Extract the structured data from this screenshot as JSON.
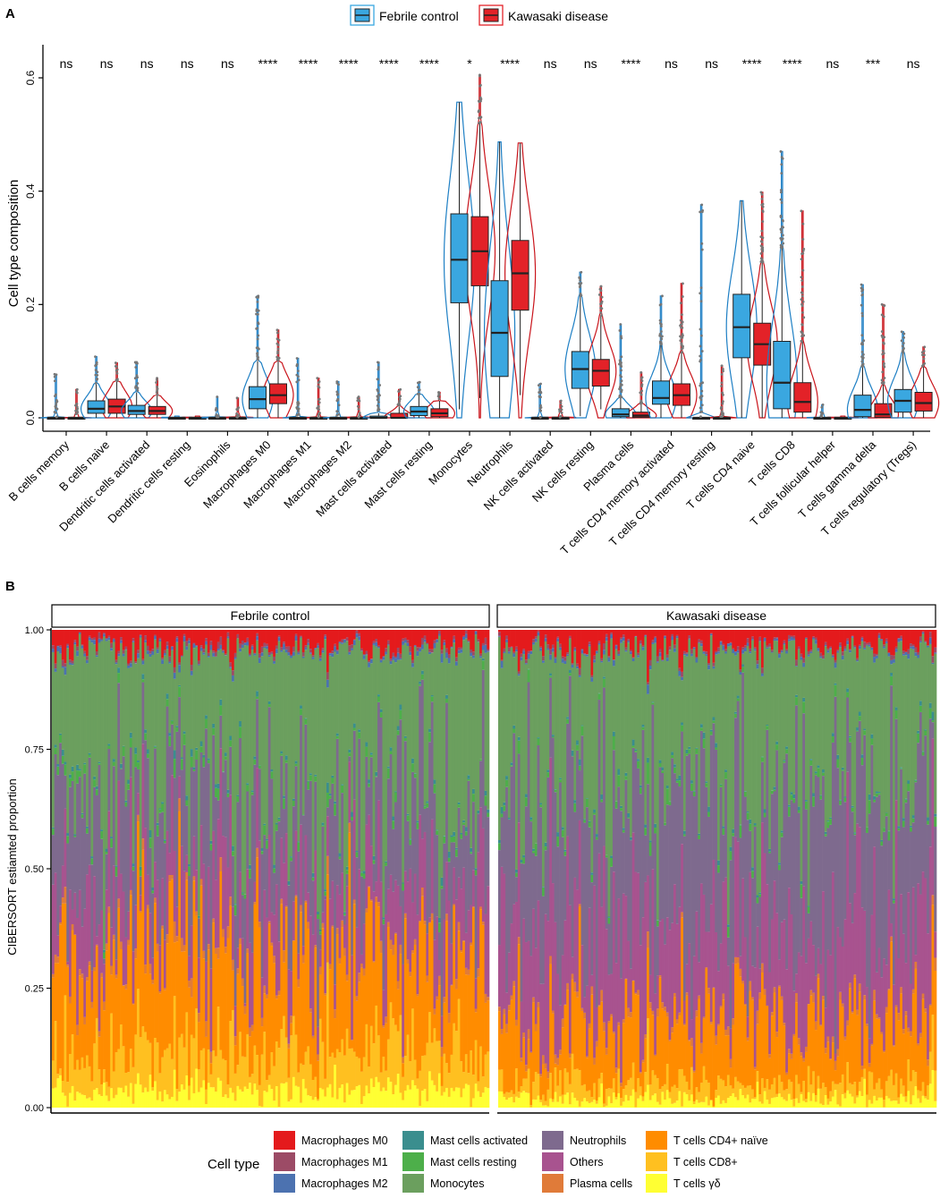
{
  "panel_a_label": "A",
  "panel_b_label": "B",
  "colors": {
    "febrile": "#3AA7E0",
    "febrile_line": "#1E7FC4",
    "kawasaki": "#E32228",
    "kawasaki_line": "#C9141B"
  },
  "chart_data": [
    {
      "type": "boxplot",
      "panel": "A",
      "ylabel": "Cell type composition",
      "ylim": [
        0,
        0.62
      ],
      "yticks": [
        "0.0",
        "0.2",
        "0.4",
        "0.6"
      ],
      "ytick_values": [
        0,
        0.2,
        0.4,
        0.6
      ],
      "legend": [
        {
          "name": "Febrile control",
          "color": "#3AA7E0"
        },
        {
          "name": "Kawasaki disease",
          "color": "#E32228"
        }
      ],
      "categories": [
        "B cells memory",
        "B cells naive",
        "Dendritic cells activated",
        "Dendritic cells resting",
        "Eosinophils",
        "Macrophages M0",
        "Macrophages M1",
        "Macrophages M2",
        "Mast cells activated",
        "Mast cells resting",
        "Monocytes",
        "Neutrophils",
        "NK cells activated",
        "NK cells resting",
        "Plasma cells",
        "T cells CD4 memory activated",
        "T cells CD4 memory resting",
        "T cells CD4 naive",
        "T cells CD8",
        "T cells follicular helper",
        "T cells gamma delta",
        "T cells regulatory (Tregs)"
      ],
      "significance": [
        "ns",
        "ns",
        "ns",
        "ns",
        "ns",
        "****",
        "****",
        "****",
        "****",
        "****",
        "*",
        "****",
        "ns",
        "ns",
        "****",
        "ns",
        "ns",
        "****",
        "****",
        "ns",
        "***",
        "ns"
      ],
      "series": [
        {
          "name": "Febrile control",
          "boxes": [
            {
              "q1": 0,
              "med": 0,
              "q3": 0,
              "wlo": 0,
              "whi": 0.001,
              "max": 0.077
            },
            {
              "q1": 0.008,
              "med": 0.016,
              "q3": 0.03,
              "wlo": 0,
              "whi": 0.06,
              "max": 0.108
            },
            {
              "q1": 0.006,
              "med": 0.012,
              "q3": 0.022,
              "wlo": 0,
              "whi": 0.045,
              "max": 0.098
            },
            {
              "q1": 0,
              "med": 0,
              "q3": 0,
              "wlo": 0,
              "whi": 0.001,
              "max": 0.003
            },
            {
              "q1": 0,
              "med": 0,
              "q3": 0,
              "wlo": 0,
              "whi": 0.001,
              "max": 0.037
            },
            {
              "q1": 0.016,
              "med": 0.033,
              "q3": 0.055,
              "wlo": 0,
              "whi": 0.1,
              "max": 0.215
            },
            {
              "q1": 0,
              "med": 0,
              "q3": 0,
              "wlo": 0,
              "whi": 0.001,
              "max": 0.105
            },
            {
              "q1": 0,
              "med": 0,
              "q3": 0,
              "wlo": 0,
              "whi": 0.001,
              "max": 0.064
            },
            {
              "q1": 0,
              "med": 0,
              "q3": 0.003,
              "wlo": 0,
              "whi": 0.008,
              "max": 0.098
            },
            {
              "q1": 0.004,
              "med": 0.011,
              "q3": 0.02,
              "wlo": 0,
              "whi": 0.042,
              "max": 0.063
            },
            {
              "q1": 0.203,
              "med": 0.279,
              "q3": 0.36,
              "wlo": 0.015,
              "whi": 0.557,
              "max": 0.557
            },
            {
              "q1": 0.073,
              "med": 0.15,
              "q3": 0.242,
              "wlo": 0,
              "whi": 0.487,
              "max": 0.487
            },
            {
              "q1": 0,
              "med": 0,
              "q3": 0,
              "wlo": 0,
              "whi": 0.001,
              "max": 0.06
            },
            {
              "q1": 0.052,
              "med": 0.086,
              "q3": 0.117,
              "wlo": 0.003,
              "whi": 0.215,
              "max": 0.257
            },
            {
              "q1": 0.002,
              "med": 0.006,
              "q3": 0.016,
              "wlo": 0,
              "whi": 0.035,
              "max": 0.165
            },
            {
              "q1": 0.024,
              "med": 0.035,
              "q3": 0.065,
              "wlo": 0,
              "whi": 0.13,
              "max": 0.215
            },
            {
              "q1": 0,
              "med": 0,
              "q3": 0,
              "wlo": 0,
              "whi": 0.002,
              "max": 0.376
            },
            {
              "q1": 0.106,
              "med": 0.16,
              "q3": 0.218,
              "wlo": 0,
              "whi": 0.383,
              "max": 0.383
            },
            {
              "q1": 0.016,
              "med": 0.062,
              "q3": 0.135,
              "wlo": 0,
              "whi": 0.3,
              "max": 0.47
            },
            {
              "q1": 0,
              "med": 0,
              "q3": 0,
              "wlo": 0,
              "whi": 0.001,
              "max": 0.023
            },
            {
              "q1": 0.002,
              "med": 0.014,
              "q3": 0.04,
              "wlo": 0,
              "whi": 0.09,
              "max": 0.235
            },
            {
              "q1": 0.01,
              "med": 0.03,
              "q3": 0.05,
              "wlo": 0,
              "whi": 0.115,
              "max": 0.152
            }
          ]
        },
        {
          "name": "Kawasaki disease",
          "boxes": [
            {
              "q1": 0,
              "med": 0,
              "q3": 0,
              "wlo": 0,
              "whi": 0.001,
              "max": 0.05
            },
            {
              "q1": 0.008,
              "med": 0.02,
              "q3": 0.033,
              "wlo": 0,
              "whi": 0.065,
              "max": 0.097
            },
            {
              "q1": 0.006,
              "med": 0.012,
              "q3": 0.02,
              "wlo": 0,
              "whi": 0.04,
              "max": 0.07
            },
            {
              "q1": 0,
              "med": 0,
              "q3": 0,
              "wlo": 0,
              "whi": 0.001,
              "max": 0.003
            },
            {
              "q1": 0,
              "med": 0,
              "q3": 0,
              "wlo": 0,
              "whi": 0.001,
              "max": 0.035
            },
            {
              "q1": 0.025,
              "med": 0.04,
              "q3": 0.06,
              "wlo": 0,
              "whi": 0.1,
              "max": 0.155
            },
            {
              "q1": 0,
              "med": 0,
              "q3": 0,
              "wlo": 0,
              "whi": 0.001,
              "max": 0.07
            },
            {
              "q1": 0,
              "med": 0,
              "q3": 0,
              "wlo": 0,
              "whi": 0.001,
              "max": 0.037
            },
            {
              "q1": 0,
              "med": 0,
              "q3": 0.008,
              "wlo": 0,
              "whi": 0.02,
              "max": 0.05
            },
            {
              "q1": 0.002,
              "med": 0.008,
              "q3": 0.016,
              "wlo": 0,
              "whi": 0.03,
              "max": 0.045
            },
            {
              "q1": 0.233,
              "med": 0.294,
              "q3": 0.355,
              "wlo": 0.035,
              "whi": 0.52,
              "max": 0.605
            },
            {
              "q1": 0.19,
              "med": 0.255,
              "q3": 0.313,
              "wlo": 0.04,
              "whi": 0.485,
              "max": 0.485
            },
            {
              "q1": 0,
              "med": 0,
              "q3": 0,
              "wlo": 0,
              "whi": 0.001,
              "max": 0.03
            },
            {
              "q1": 0.056,
              "med": 0.083,
              "q3": 0.103,
              "wlo": 0.015,
              "whi": 0.18,
              "max": 0.232
            },
            {
              "q1": 0.001,
              "med": 0.004,
              "q3": 0.01,
              "wlo": 0,
              "whi": 0.025,
              "max": 0.08
            },
            {
              "q1": 0.022,
              "med": 0.04,
              "q3": 0.06,
              "wlo": 0,
              "whi": 0.115,
              "max": 0.237
            },
            {
              "q1": 0,
              "med": 0,
              "q3": 0,
              "wlo": 0,
              "whi": 0.002,
              "max": 0.092
            },
            {
              "q1": 0.093,
              "med": 0.13,
              "q3": 0.167,
              "wlo": 0,
              "whi": 0.275,
              "max": 0.398
            },
            {
              "q1": 0.01,
              "med": 0.028,
              "q3": 0.062,
              "wlo": 0,
              "whi": 0.135,
              "max": 0.365
            },
            {
              "q1": 0,
              "med": 0,
              "q3": 0,
              "wlo": 0,
              "whi": 0.001,
              "max": 0.003
            },
            {
              "q1": 0.001,
              "med": 0.006,
              "q3": 0.025,
              "wlo": 0,
              "whi": 0.06,
              "max": 0.2
            },
            {
              "q1": 0.012,
              "med": 0.026,
              "q3": 0.045,
              "wlo": 0,
              "whi": 0.09,
              "max": 0.125
            }
          ]
        }
      ]
    },
    {
      "type": "stacked-bar",
      "panel": "B",
      "ylabel": "CIBERSORT estiamted proportion",
      "ylim": [
        0,
        1
      ],
      "yticks": [
        "0.00",
        "0.25",
        "0.50",
        "0.75",
        "1.00"
      ],
      "ytick_values": [
        0,
        0.25,
        0.5,
        0.75,
        1
      ],
      "facets": [
        "Febrile control",
        "Kawasaki disease"
      ],
      "bars_per_facet": [
        180,
        180
      ],
      "stack_order_bottom_to_top": [
        "T cells γδ",
        "T cells CD8+",
        "T cells CD4+ naïve",
        "Plasma cells",
        "Others",
        "Neutrophils",
        "Mast cells resting",
        "Mast cells activated",
        "Monocytes",
        "Macrophages M2",
        "Macrophages M1",
        "Macrophages M0"
      ],
      "mean_proportions": {
        "Febrile control": {
          "T cells γδ": 0.03,
          "T cells CD8+": 0.07,
          "T cells CD4+ naïve": 0.16,
          "Plasma cells": 0.01,
          "Others": 0.12,
          "Neutrophils": 0.15,
          "Mast cells resting": 0.01,
          "Mast cells activated": 0.005,
          "Monocytes": 0.28,
          "Macrophages M2": 0.005,
          "Macrophages M1": 0.005,
          "Macrophages M0": 0.03
        },
        "Kawasaki disease": {
          "T cells γδ": 0.02,
          "T cells CD8+": 0.03,
          "T cells CD4+ naïve": 0.13,
          "Plasma cells": 0.01,
          "Others": 0.2,
          "Neutrophils": 0.26,
          "Mast cells resting": 0.01,
          "Mast cells activated": 0.005,
          "Monocytes": 0.29,
          "Macrophages M2": 0.005,
          "Macrophages M1": 0.005,
          "Macrophages M0": 0.035
        }
      },
      "legend_title": "Cell type",
      "legend": [
        {
          "name": "Macrophages M0",
          "color": "#E41A1C"
        },
        {
          "name": "Macrophages M1",
          "color": "#9C4B66"
        },
        {
          "name": "Macrophages M2",
          "color": "#4C72B0"
        },
        {
          "name": "Mast cells activated",
          "color": "#3A8E8E"
        },
        {
          "name": "Mast cells resting",
          "color": "#4DAF4A"
        },
        {
          "name": "Monocytes",
          "color": "#6B9F5E"
        },
        {
          "name": "Neutrophils",
          "color": "#7E6A8E"
        },
        {
          "name": "Others",
          "color": "#A8538F"
        },
        {
          "name": "Plasma cells",
          "color": "#E07B39"
        },
        {
          "name": "T cells CD4+ naïve",
          "color": "#FF8C00"
        },
        {
          "name": "T cells CD8+",
          "color": "#FFC020"
        },
        {
          "name": "T cells γδ",
          "color": "#FFFF33"
        }
      ]
    }
  ]
}
